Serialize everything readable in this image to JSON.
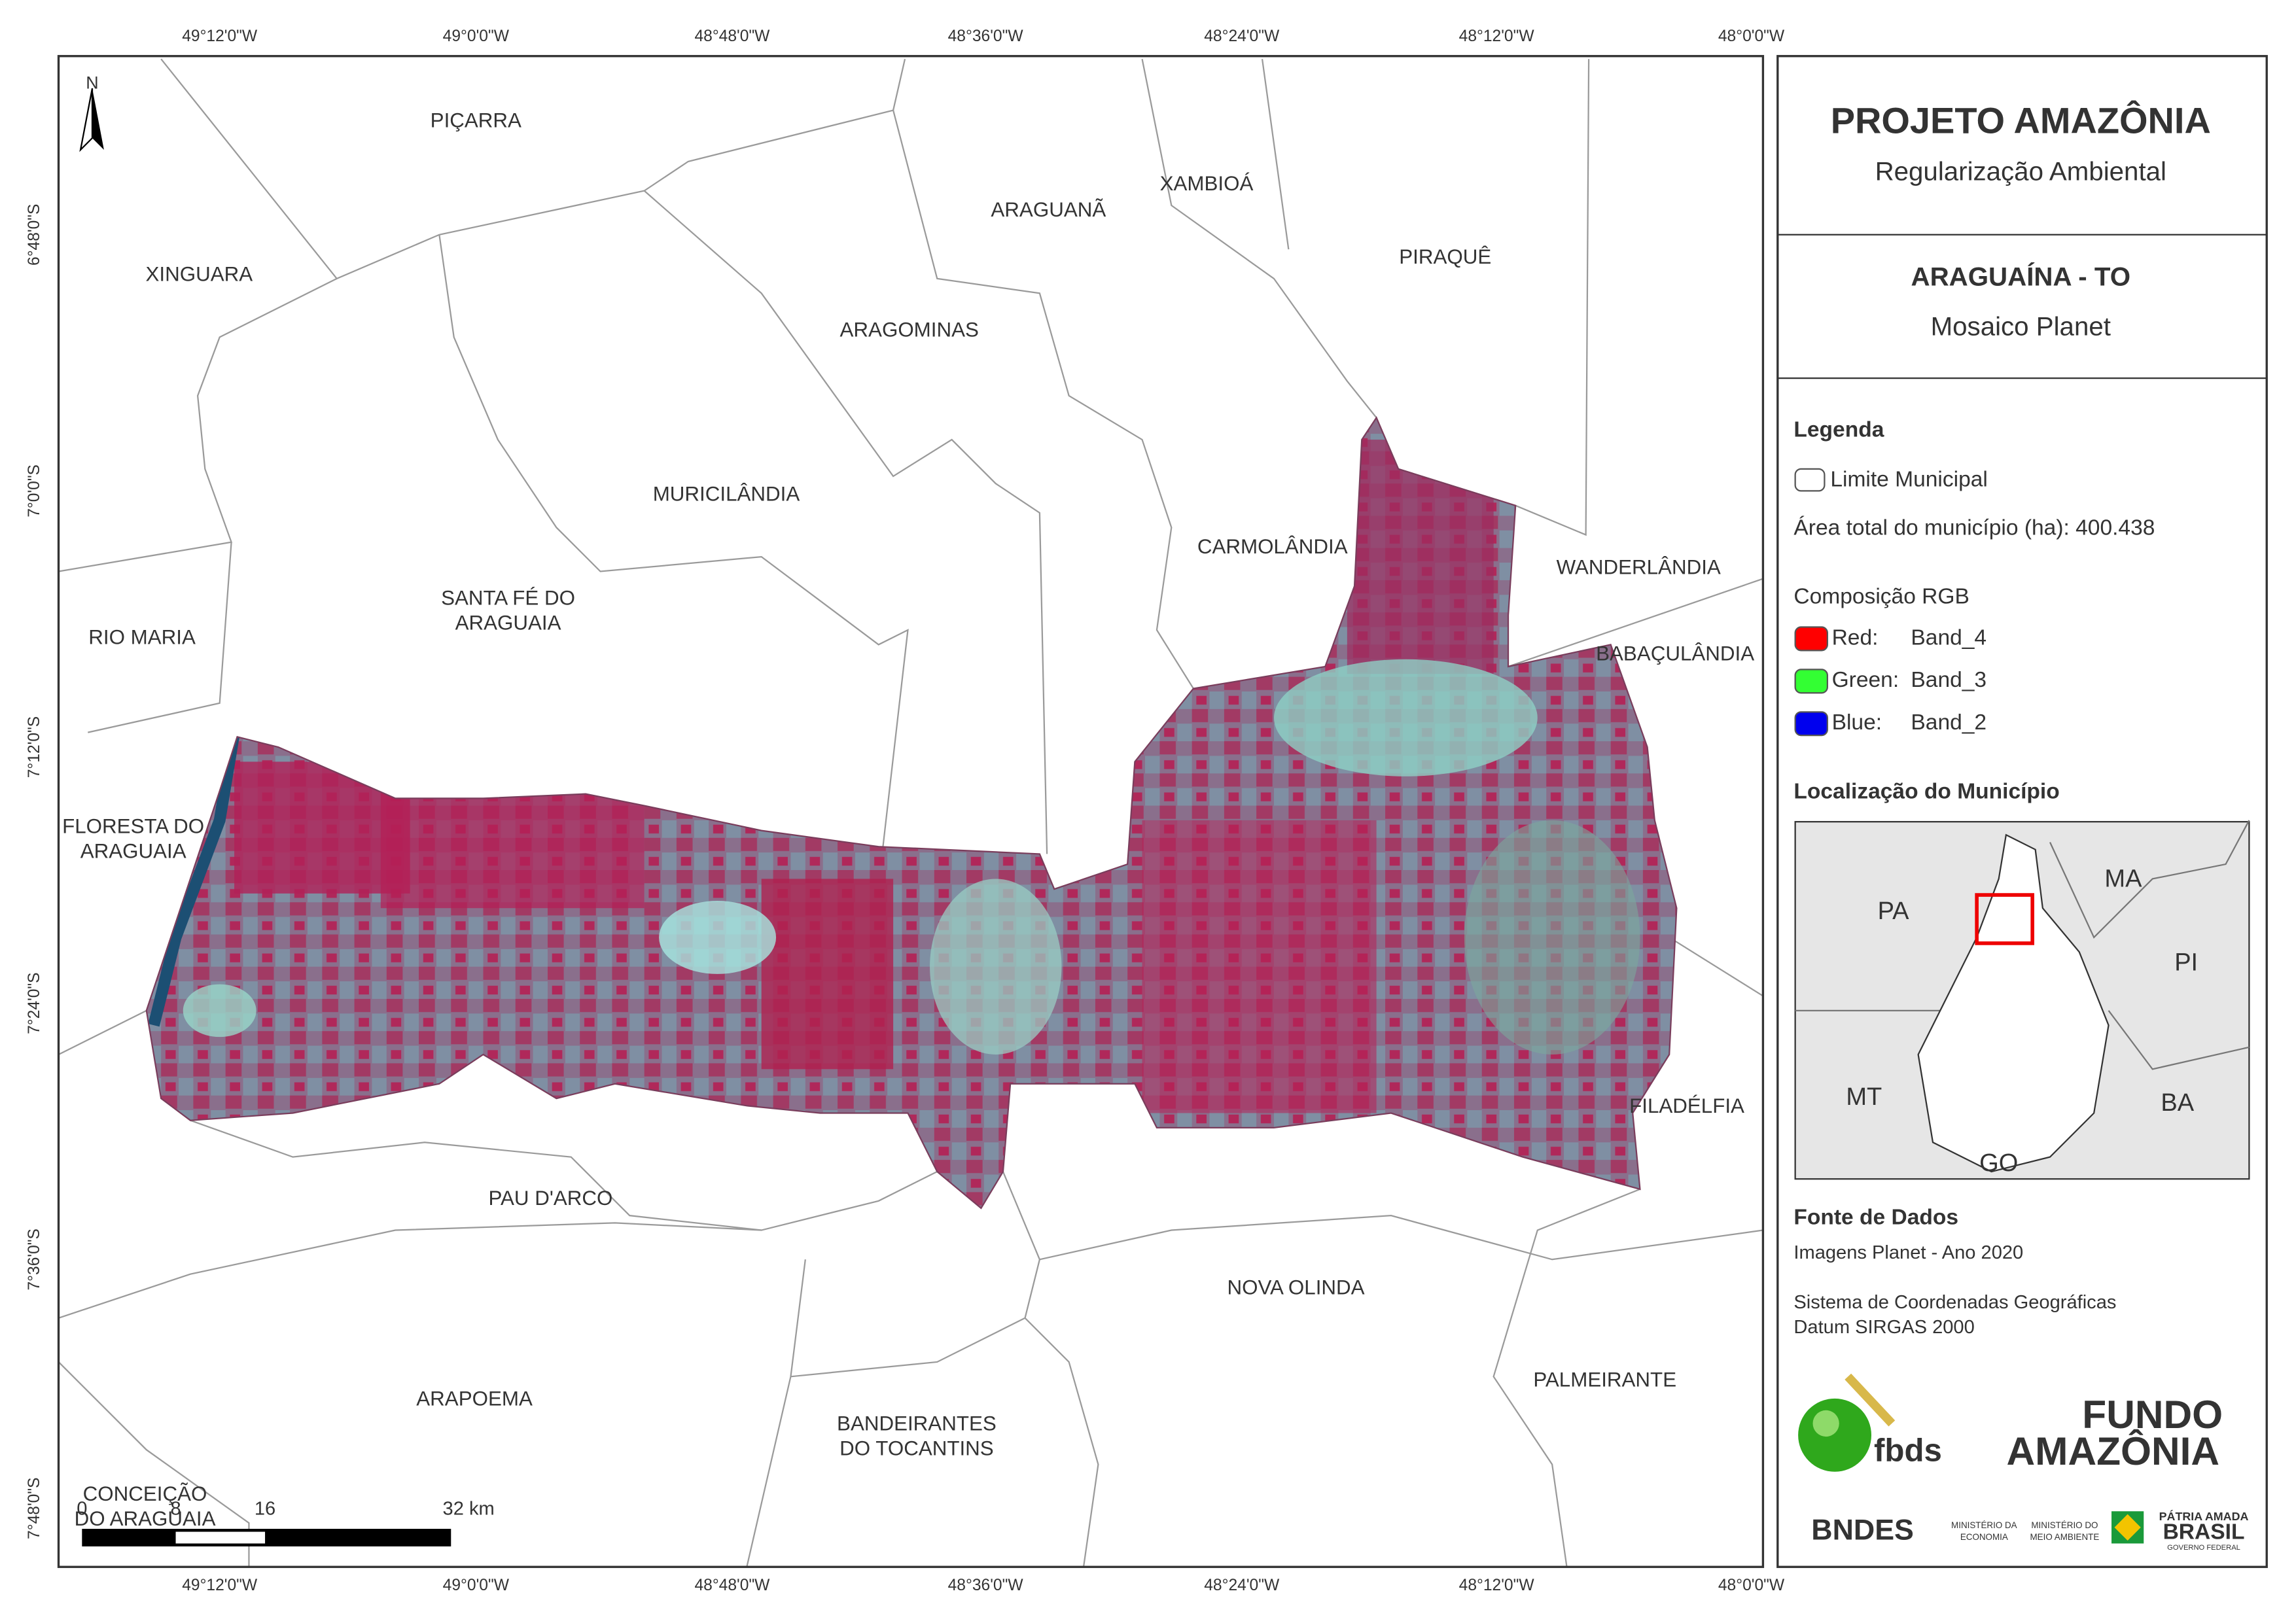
{
  "map": {
    "lon_labels": [
      "49°12'0\"W",
      "49°0'0\"W",
      "48°48'0\"W",
      "48°36'0\"W",
      "48°24'0\"W",
      "48°12'0\"W",
      "48°0'0\"W"
    ],
    "lat_labels": [
      "6°48'0\"S",
      "7°0'0\"S",
      "7°12'0\"S",
      "7°24'0\"S",
      "7°36'0\"S",
      "7°48'0\"S"
    ],
    "north": "N",
    "municipalities": [
      {
        "lines": [
          "PIÇARRA"
        ]
      },
      {
        "lines": [
          "XINGUARA"
        ]
      },
      {
        "lines": [
          "ARAGUANÃ"
        ]
      },
      {
        "lines": [
          "XAMBIOÁ"
        ]
      },
      {
        "lines": [
          "PIRAQUÊ"
        ]
      },
      {
        "lines": [
          "ARAGOMINAS"
        ]
      },
      {
        "lines": [
          "MURICILÂNDIA"
        ]
      },
      {
        "lines": [
          "CARMOLÂNDIA"
        ]
      },
      {
        "lines": [
          "WANDERLÂNDIA"
        ]
      },
      {
        "lines": [
          "SANTA FÉ DO",
          "ARAGUAIA"
        ]
      },
      {
        "lines": [
          "RIO MARIA"
        ]
      },
      {
        "lines": [
          "BABAÇULÂNDIA"
        ]
      },
      {
        "lines": [
          "FLORESTA DO",
          "ARAGUAIA"
        ]
      },
      {
        "lines": [
          "FILADÉLFIA"
        ]
      },
      {
        "lines": [
          "PAU D'ARCO"
        ]
      },
      {
        "lines": [
          "NOVA OLINDA"
        ]
      },
      {
        "lines": [
          "PALMEIRANTE"
        ]
      },
      {
        "lines": [
          "ARAPOEMA"
        ]
      },
      {
        "lines": [
          "BANDEIRANTES",
          "DO TOCANTINS"
        ]
      },
      {
        "lines": [
          "CONCEIÇÃO",
          "DO ARAGUAIA"
        ]
      }
    ],
    "scale_bar": {
      "labels": [
        "0",
        "8",
        "16",
        "32 km"
      ]
    }
  },
  "panel": {
    "title": "PROJETO AMAZÔNIA",
    "subtitle": "Regularização Ambiental",
    "area": "ARAGUAÍNA - TO",
    "product": "Mosaico Planet",
    "legend": {
      "title": "Legenda",
      "boundary": "Limite Municipal",
      "total_area": "Área total do município (ha): 400.438",
      "rgb_title": "Composição RGB",
      "bands": [
        {
          "label": "Red:",
          "value": "Band_4",
          "color": "#ff0000"
        },
        {
          "label": "Green:",
          "value": "Band_3",
          "color": "#33ff33"
        },
        {
          "label": "Blue:",
          "value": "Band_2",
          "color": "#0000ee"
        }
      ]
    },
    "location": {
      "title": "Localização do Município",
      "labels": [
        "PA",
        "MA",
        "PI",
        "MT",
        "BA",
        "GO"
      ]
    },
    "sources": {
      "title": "Fonte de Dados",
      "lines": [
        "Imagens Planet - Ano 2020",
        "Sistema de Coordenadas Geográficas",
        "Datum SIRGAS 2000"
      ]
    },
    "logos": {
      "fbds": "fbds",
      "fundo": [
        "FUNDO",
        "AMAZÔNIA"
      ],
      "bndes": "BNDES",
      "ministries": [
        "MINISTÉRIO DA",
        "ECONOMIA",
        "MINISTÉRIO DO",
        "MEIO AMBIENTE"
      ],
      "brasil": [
        "PÁTRIA AMADA",
        "BRASIL",
        "GOVERNO FEDERAL"
      ]
    }
  }
}
